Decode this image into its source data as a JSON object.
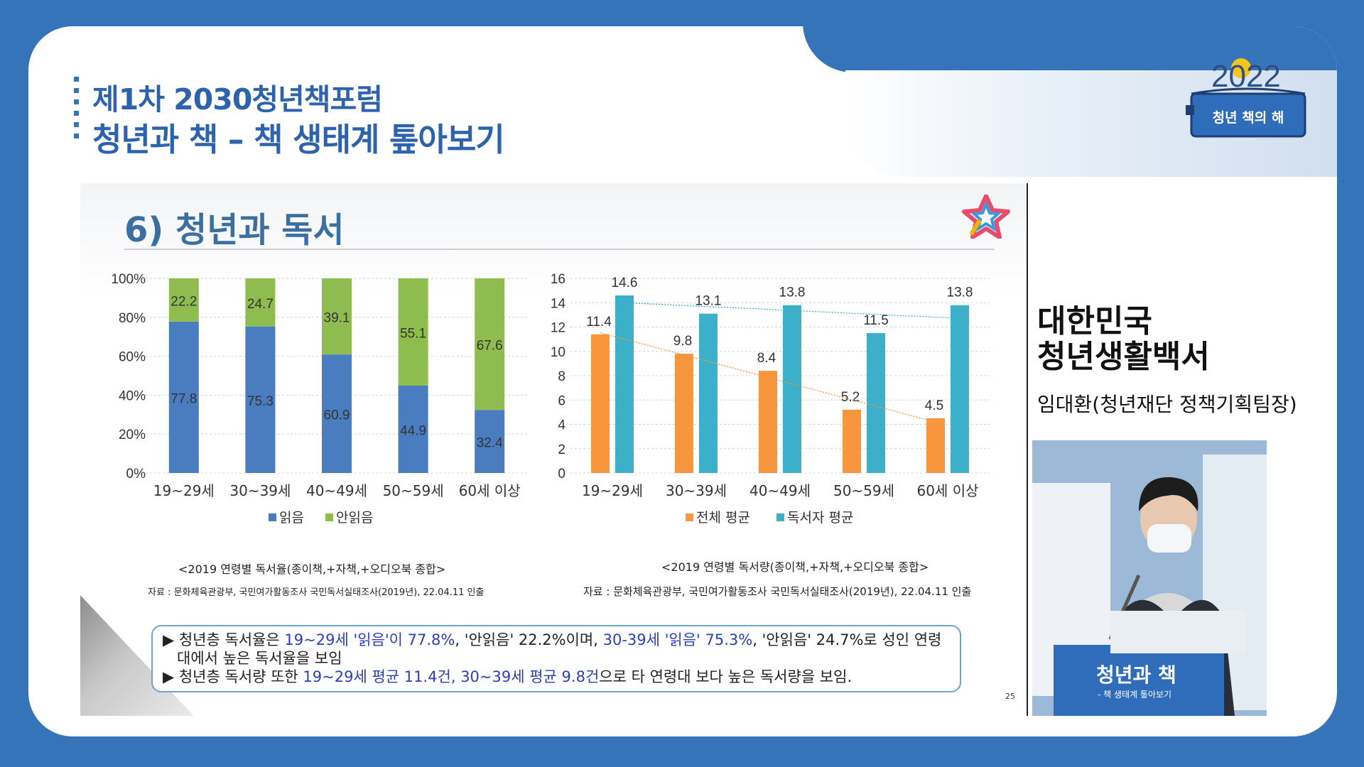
{
  "header": {
    "line1": "제1차  2030청년책포럼",
    "line2": "청년과 책 – 책 생태계 톺아보기"
  },
  "logo": {
    "year": "2022",
    "label": "청년 책의 해"
  },
  "slide": {
    "title": "6) 청년과 독서",
    "page_number": "25",
    "left_caption": "<2019 연령별 독서율(종이책,+자책,+오디오북 종합>",
    "left_source": "자료 : 문화체육관광부, 국민여가활동조사 국민독서실태조사(2019년), 22.04.11 인출",
    "right_caption": "<2019 연령별 독서량(종이책,+자책,+오디오북 종합>",
    "right_source": "자료 : 문화체육관광부, 국민여가활동조사 국민독서실태조사(2019년), 22.04.11 인출",
    "note": {
      "b1_a": "▶ 청년층 독서율은 ",
      "b1_hl1": "19~29세 '읽음'이 77.8%",
      "b1_b": ", '안읽음' 22.2%이며, ",
      "b1_hl2": "30-39세 '읽음' 75.3%",
      "b1_c": ", '안읽음' 24.7%로 성인 연령",
      "b1_d": "   대에서 높은 독서율을 보임",
      "b2_a": "▶ 청년층 독서량 또한 ",
      "b2_hl": "19~29세 평균 11.4건, 30~39세 평균 9.8건",
      "b2_b": "으로 타 연령대 보다 높은 독서량을 보임."
    }
  },
  "presenter": {
    "book_line1": "대한민국",
    "book_line2": "청년생활백서",
    "name": "임대환(청년재단 정책기획팀장)",
    "banner_title": "청년과 책",
    "banner_sub": "- 책 생태계 톺아보기"
  },
  "colors": {
    "brand_blue": "#3574b8",
    "read": "#4a7cc0",
    "not_read": "#8fbc4e",
    "overall_avg": "#f7963d",
    "reader_avg": "#3cb0c9"
  },
  "chart_data": [
    {
      "type": "bar",
      "stacked": true,
      "percent": true,
      "categories": [
        "19~29세",
        "30~39세",
        "40~49세",
        "50~59세",
        "60세 이상"
      ],
      "series": [
        {
          "name": "읽음",
          "values": [
            77.8,
            75.3,
            60.9,
            44.9,
            32.4
          ]
        },
        {
          "name": "안읽음",
          "values": [
            22.2,
            24.7,
            39.1,
            55.1,
            67.6
          ]
        }
      ],
      "y_ticks": [
        "0%",
        "20%",
        "40%",
        "60%",
        "80%",
        "100%"
      ],
      "ylim": [
        0,
        100
      ],
      "grid": true,
      "legend": "bottom"
    },
    {
      "type": "bar",
      "categories": [
        "19~29세",
        "30~39세",
        "40~49세",
        "50~59세",
        "60세 이상"
      ],
      "series": [
        {
          "name": "전체 평균",
          "values": [
            11.4,
            9.8,
            8.4,
            5.2,
            4.5
          ]
        },
        {
          "name": "독서자 평균",
          "values": [
            14.6,
            13.1,
            13.8,
            11.5,
            13.8
          ]
        }
      ],
      "y_ticks": [
        "0",
        "2",
        "4",
        "6",
        "8",
        "10",
        "12",
        "14",
        "16"
      ],
      "ylim": [
        0,
        16
      ],
      "trendlines": true,
      "grid": true,
      "legend": "bottom"
    }
  ]
}
